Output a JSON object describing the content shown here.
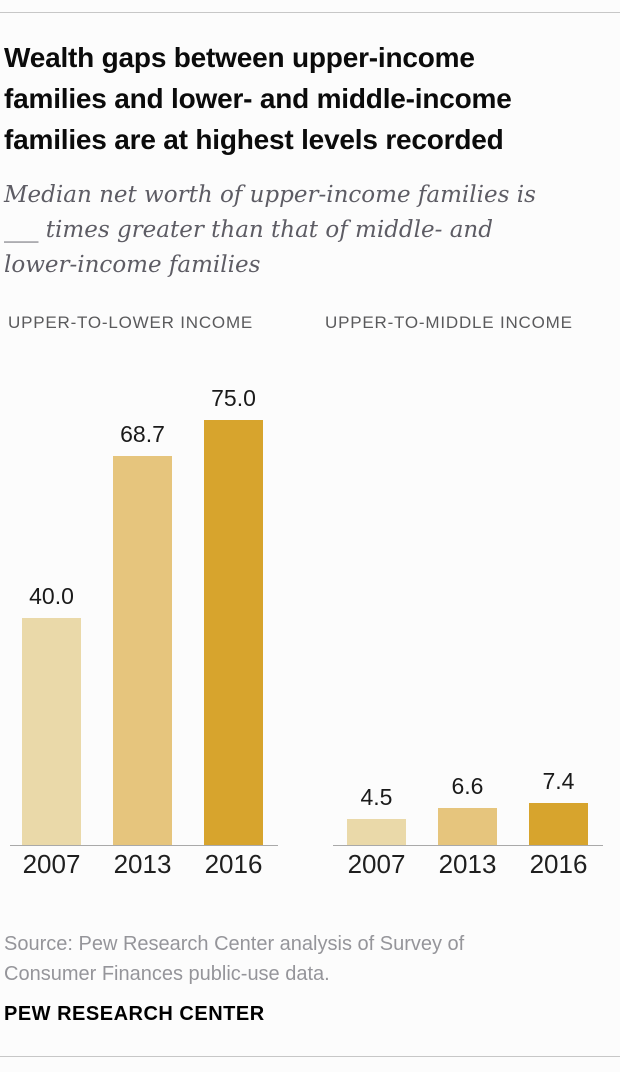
{
  "header": {
    "title": "Wealth gaps between upper-income\nfamilies and lower- and middle-income\nfamilies are at highest levels recorded",
    "subtitle": "Median net worth of upper-income families is\n___ times greater than that of middle- and\nlower-income families"
  },
  "chart_data": {
    "type": "bar",
    "panels": [
      {
        "label": "UPPER-TO-LOWER INCOME",
        "categories": [
          "2007",
          "2013",
          "2016"
        ],
        "values": [
          40.0,
          68.7,
          75.0
        ],
        "value_labels": [
          "40.0",
          "68.7",
          "75.0"
        ]
      },
      {
        "label": "UPPER-TO-MIDDLE INCOME",
        "categories": [
          "2007",
          "2013",
          "2016"
        ],
        "values": [
          4.5,
          6.6,
          7.4
        ],
        "value_labels": [
          "4.5",
          "6.6",
          "7.4"
        ]
      }
    ],
    "bar_colors": [
      "#ead9a9",
      "#e6c57d",
      "#d7a42d"
    ],
    "ylim": [
      0,
      78.5
    ],
    "grid": false,
    "legend": "none",
    "value_labels_position": "above-bar",
    "xlabel": "",
    "ylabel": ""
  },
  "footer": {
    "source": "Source: Pew Research Center analysis of Survey of\nConsumer Finances public-use data.",
    "brand": "PEW RESEARCH CENTER"
  },
  "colors": {
    "accent_gold": "#d7a42d",
    "title_text": "#0b0b0b",
    "subtitle_text": "#5d5c64",
    "panel_label_text": "#5a5a5c",
    "source_text": "#95959a",
    "axis_line": "#a9a9a9",
    "hairline": "#c7c7c7",
    "background": "#fcfcfc"
  }
}
